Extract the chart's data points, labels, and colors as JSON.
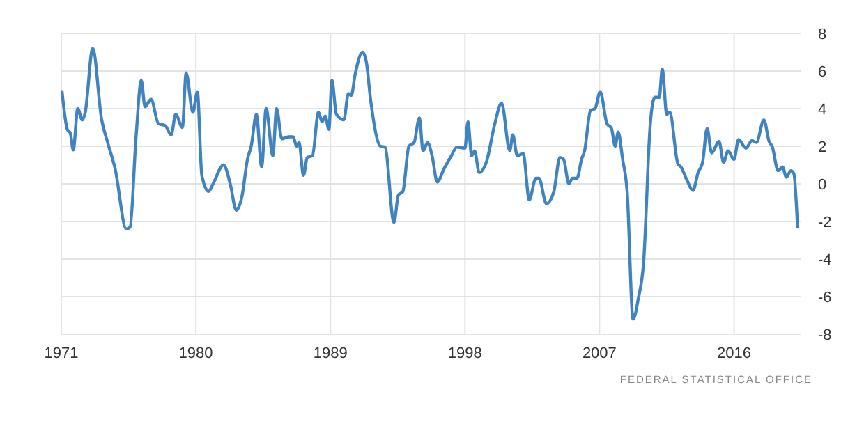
{
  "chart_data": {
    "type": "line",
    "xlim": [
      1971,
      2020.5
    ],
    "xticks": [
      1971,
      1980,
      1989,
      1998,
      2007,
      2016
    ],
    "ylim": [
      -8,
      8
    ],
    "yticks": [
      -8,
      -6,
      -4,
      -2,
      0,
      2,
      4,
      6,
      8
    ],
    "grid": true,
    "marker": "none",
    "line_style": "solid",
    "annotations": [
      "FEDERAL STATISTICAL OFFICE"
    ],
    "series": [
      {
        "color": "#3f83c1",
        "x": [
          1971.05,
          1971.4,
          1971.6,
          1971.8,
          1972.1,
          1972.4,
          1972.6,
          1973.1,
          1973.7,
          1974.1,
          1974.6,
          1975.35,
          1975.6,
          1976,
          1976.35,
          1976.6,
          1977,
          1977.5,
          1977.95,
          1978.35,
          1978.65,
          1979.1,
          1979.35,
          1979.8,
          1980.1,
          1980.4,
          1980.85,
          1981.15,
          1981.85,
          1982.3,
          1982.7,
          1983.1,
          1983.45,
          1983.7,
          1984.05,
          1984.4,
          1984.7,
          1985.15,
          1985.4,
          1985.75,
          1986.2,
          1986.5,
          1986.75,
          1986.9,
          1987.2,
          1987.45,
          1987.8,
          1988.2,
          1988.45,
          1988.65,
          1988.9,
          1989.1,
          1989.4,
          1989.9,
          1990.2,
          1990.4,
          1990.65,
          1991.15,
          1991.4,
          1991.7,
          1992.35,
          1992.65,
          1993.25,
          1993.55,
          1993.85,
          1994.25,
          1994.6,
          1994.95,
          1995.2,
          1995.5,
          1995.8,
          1996.15,
          1996.6,
          1997.1,
          1997.45,
          1998,
          1998.2,
          1998.45,
          1998.65,
          1998.95,
          1999.45,
          2000,
          2000.45,
          2001,
          2001.2,
          2001.5,
          2001.9,
          2002.3,
          2002.75,
          2002.95,
          2003.45,
          2003.95,
          2004.35,
          2004.6,
          2004.95,
          2005.2,
          2005.5,
          2005.8,
          2006,
          2006.4,
          2006.7,
          2007.05,
          2007.5,
          2007.8,
          2008.05,
          2008.25,
          2008.55,
          2008.85,
          2009.25,
          2009.6,
          2009.95,
          2010.4,
          2010.7,
          2011,
          2011.2,
          2011.5,
          2011.7,
          2012.25,
          2012.45,
          2012.85,
          2013.25,
          2013.6,
          2013.9,
          2014.2,
          2014.5,
          2015,
          2015.3,
          2015.6,
          2016,
          2016.3,
          2016.8,
          2017.2,
          2017.5,
          2018,
          2018.35,
          2018.55,
          2018.95,
          2019.25,
          2019.5,
          2019.8,
          2020,
          2020.25
        ],
        "values": [
          4.9,
          2.9,
          2.7,
          1.8,
          4.0,
          3.4,
          3.8,
          7.2,
          3.4,
          2.2,
          0.8,
          -2.4,
          -2.3,
          2.5,
          5.5,
          4.1,
          4.5,
          3.2,
          3.1,
          2.6,
          3.7,
          3.0,
          5.9,
          3.8,
          4.9,
          0.45,
          -0.4,
          0.0,
          1.0,
          0.0,
          -1.4,
          -0.6,
          1.3,
          2.0,
          3.7,
          0.9,
          4.0,
          1.5,
          4.0,
          2.4,
          2.5,
          2.5,
          2.0,
          2.2,
          0.45,
          1.4,
          1.5,
          3.8,
          3.3,
          3.6,
          2.9,
          5.5,
          3.7,
          3.4,
          4.8,
          4.7,
          5.8,
          7.0,
          6.5,
          4.4,
          2.0,
          1.95,
          -2.05,
          -0.6,
          -0.4,
          2.0,
          2.2,
          3.5,
          1.75,
          2.2,
          1.5,
          0.1,
          0.8,
          1.5,
          1.95,
          1.9,
          3.3,
          1.5,
          1.75,
          0.6,
          1.2,
          3.2,
          4.3,
          1.75,
          2.6,
          1.5,
          1.6,
          -0.85,
          0.3,
          0.3,
          -1.05,
          -0.4,
          1.4,
          1.3,
          0.0,
          0.3,
          0.3,
          1.3,
          1.75,
          3.9,
          4.0,
          4.9,
          3.2,
          2.95,
          2.0,
          2.75,
          1.3,
          -0.4,
          -7.2,
          -6.1,
          -4.2,
          3.2,
          4.6,
          4.6,
          6.1,
          3.7,
          3.8,
          1.05,
          0.9,
          0.2,
          -0.35,
          0.6,
          1.15,
          2.95,
          1.65,
          2.25,
          1.15,
          1.75,
          1.3,
          2.35,
          1.9,
          2.3,
          2.2,
          3.4,
          2.25,
          2.0,
          0.7,
          0.9,
          0.35,
          0.7,
          0.55,
          -2.3
        ]
      }
    ]
  }
}
